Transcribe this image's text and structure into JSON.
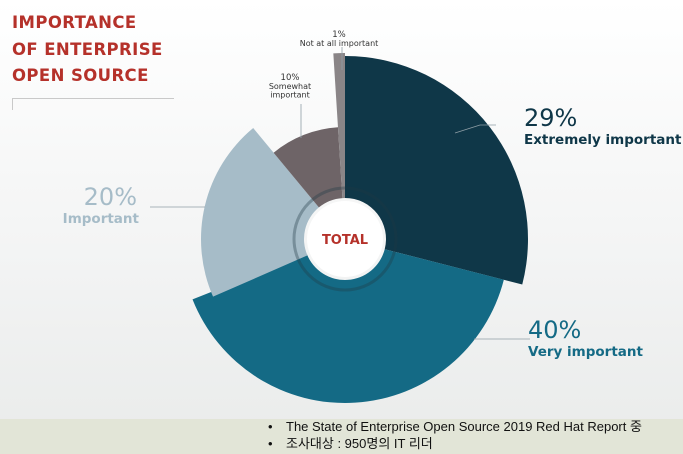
{
  "title_lines": [
    "IMPORTANCE",
    "OF ENTERPRISE",
    "OPEN SOURCE"
  ],
  "center_label": "TOTAL",
  "footer_notes": [
    "The State of Enterprise Open Source 2019 Red Hat Report 중",
    "조사대상 : 950명의 IT 리더"
  ],
  "chart_data": {
    "type": "pie",
    "style": "donut",
    "slices": [
      {
        "label": "Extremely important",
        "value": 29,
        "display": "29%",
        "color": "#0f3748"
      },
      {
        "label": "Very important",
        "value": 40,
        "display": "40%",
        "color": "#146a85"
      },
      {
        "label": "Important",
        "value": 20,
        "display": "20%",
        "color": "#a6bcc8"
      },
      {
        "label": "Somewhat important",
        "value": 10,
        "display": "10%",
        "color": "#6e6467"
      },
      {
        "label": "Not at all important",
        "value": 1,
        "display": "1%",
        "color": "#8a8587"
      }
    ]
  }
}
